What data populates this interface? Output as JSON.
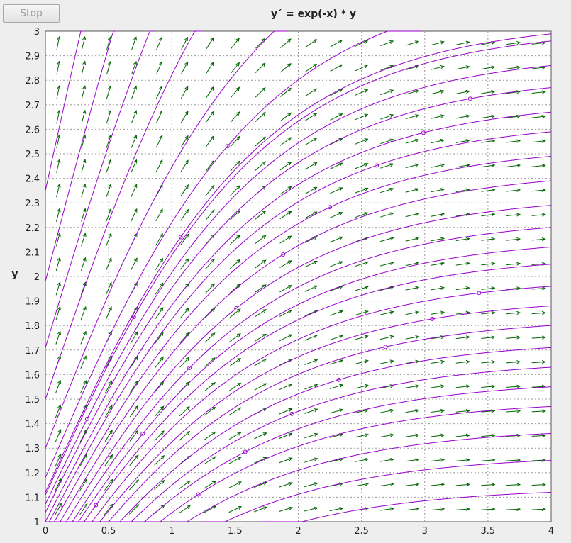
{
  "toolbar": {
    "stop_label": "Stop"
  },
  "chart_data": {
    "type": "direction-field",
    "title": "y´ = exp(-x) * y",
    "xlabel": "",
    "ylabel": "y",
    "xlim": [
      0,
      4
    ],
    "ylim": [
      1,
      3
    ],
    "x_ticks": [
      "0",
      "0.5",
      "1",
      "1.5",
      "2",
      "2.5",
      "3",
      "3.5",
      "4"
    ],
    "y_ticks": [
      "1",
      "1.1",
      "1.2",
      "1.3",
      "1.4",
      "1.5",
      "1.6",
      "1.7",
      "1.8",
      "1.9",
      "2",
      "2.1",
      "2.2",
      "2.3",
      "2.4",
      "2.5",
      "2.6",
      "2.7",
      "2.8",
      "2.9",
      "3"
    ],
    "grid": "dashed",
    "arrow_color": "#006400",
    "curve_color": "#9900cc",
    "solution_curves_y_at_x4": [
      1.12,
      1.25,
      1.36,
      1.47,
      1.55,
      1.63,
      1.71,
      1.8,
      1.88,
      1.96,
      2.05,
      2.12,
      2.2,
      2.29,
      2.39,
      2.49,
      2.59,
      2.67,
      2.77,
      2.86,
      2.96
    ],
    "solution_curves_y_at_x0": [
      1.12,
      1.18,
      1.3,
      1.5,
      1.71,
      1.98,
      2.35
    ]
  }
}
